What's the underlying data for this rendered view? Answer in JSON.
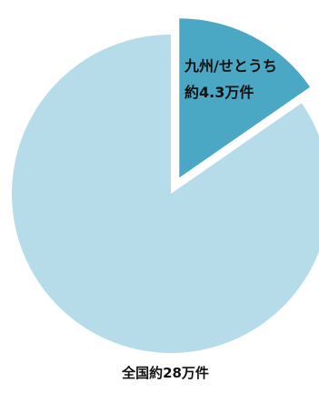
{
  "chart_data": {
    "type": "pie",
    "slices": [
      {
        "label_lines": [
          "九州/せとうち",
          "約4.3万件"
        ],
        "value": 4.3,
        "color": "#4aa8c4",
        "exploded": true
      },
      {
        "label_lines": [],
        "value": 23.7,
        "color": "#b5dce8",
        "exploded": false
      }
    ],
    "total_label": "全国約28万件",
    "start": "12 o'clock, clockwise"
  }
}
